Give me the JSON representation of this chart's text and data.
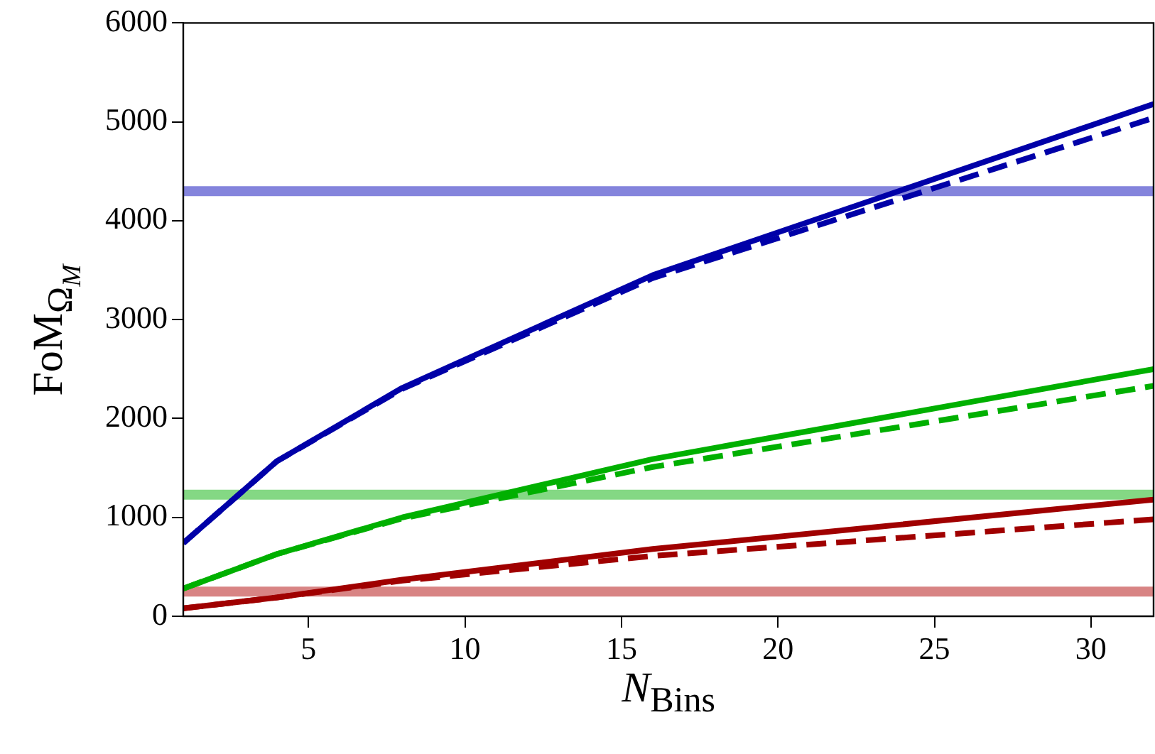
{
  "chart_data": {
    "type": "line",
    "xlabel": "N$_{Bins}$",
    "ylabel": "FoM$_{ΩM}$",
    "x": [
      1,
      4,
      8,
      16,
      32
    ],
    "xlim": [
      1,
      32
    ],
    "xticks": [
      5,
      10,
      15,
      20,
      25,
      30
    ],
    "ylim": [
      0,
      6000
    ],
    "yticks": [
      0,
      1000,
      2000,
      3000,
      4000,
      5000,
      6000
    ],
    "grid": false,
    "legend": false,
    "marker": "none",
    "series": [
      {
        "color": "#0000a8",
        "line_style": "solid",
        "values": [
          740,
          1570,
          2310,
          3450,
          5180
        ]
      },
      {
        "color": "#0000a8",
        "line_style": "dashed",
        "values": [
          740,
          1570,
          2300,
          3420,
          5040
        ]
      },
      {
        "color": "#00b000",
        "line_style": "solid",
        "values": [
          280,
          630,
          1000,
          1590,
          2500
        ]
      },
      {
        "color": "#00b000",
        "line_style": "dashed",
        "values": [
          280,
          630,
          990,
          1510,
          2330
        ]
      },
      {
        "color": "#a00000",
        "line_style": "solid",
        "values": [
          80,
          190,
          370,
          680,
          1180
        ]
      },
      {
        "color": "#a00000",
        "line_style": "dashed",
        "values": [
          80,
          190,
          360,
          610,
          980
        ]
      }
    ],
    "ref_lines": [
      {
        "axis": "y",
        "value": 4300,
        "color": "#8484dc"
      },
      {
        "axis": "y",
        "value": 1230,
        "color": "#84d884"
      },
      {
        "axis": "y",
        "value": 250,
        "color": "#d88484"
      }
    ]
  }
}
